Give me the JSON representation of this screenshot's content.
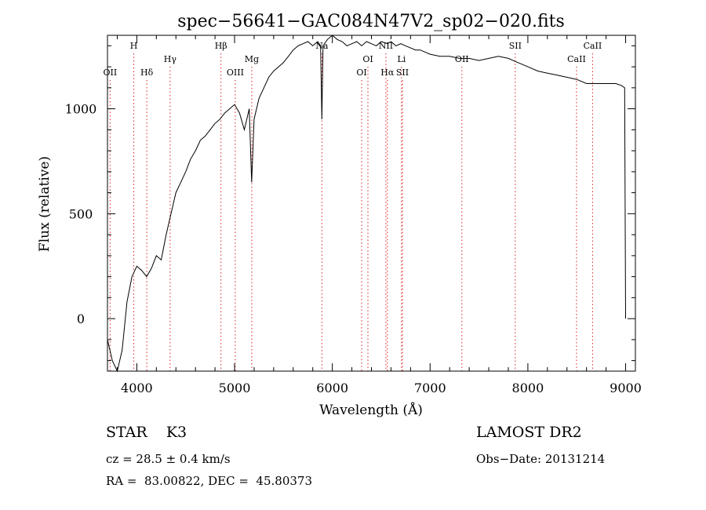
{
  "chart_data": {
    "type": "line",
    "title": "spec−56641−GAC084N47V2_sp02−020.fits",
    "xlabel": "Wavelength (Å)",
    "ylabel": "Flux (relative)",
    "xlim": [
      3700,
      9100
    ],
    "ylim": [
      -250,
      1350
    ],
    "xticks": [
      4000,
      5000,
      6000,
      7000,
      8000,
      9000
    ],
    "yticks": [
      0,
      500,
      1000
    ],
    "grid": false,
    "series": [
      {
        "x": [
          3700,
          3750,
          3800,
          3850,
          3900,
          3950,
          4000,
          4050,
          4100,
          4150,
          4200,
          4250,
          4300,
          4350,
          4400,
          4450,
          4500,
          4550,
          4600,
          4650,
          4700,
          4750,
          4800,
          4850,
          4900,
          4950,
          5000,
          5050,
          5100,
          5150,
          5175,
          5200,
          5250,
          5300,
          5350,
          5400,
          5450,
          5500,
          5550,
          5600,
          5650,
          5700,
          5750,
          5800,
          5850,
          5880,
          5893,
          5905,
          5950,
          6000,
          6050,
          6100,
          6150,
          6200,
          6250,
          6300,
          6350,
          6400,
          6450,
          6500,
          6563,
          6600,
          6650,
          6700,
          6750,
          6800,
          6850,
          6900,
          6950,
          7000,
          7100,
          7200,
          7300,
          7400,
          7500,
          7600,
          7700,
          7800,
          7900,
          8000,
          8100,
          8200,
          8300,
          8400,
          8500,
          8600,
          8700,
          8800,
          8900,
          8960,
          8990,
          9000
        ],
        "y": [
          -100,
          -200,
          -250,
          -150,
          80,
          200,
          250,
          230,
          200,
          240,
          300,
          280,
          400,
          500,
          600,
          650,
          700,
          760,
          800,
          850,
          870,
          900,
          930,
          950,
          980,
          1000,
          1020,
          980,
          900,
          1000,
          650,
          950,
          1050,
          1100,
          1150,
          1180,
          1200,
          1220,
          1250,
          1280,
          1300,
          1310,
          1320,
          1300,
          1320,
          1300,
          950,
          1300,
          1330,
          1350,
          1330,
          1320,
          1300,
          1310,
          1320,
          1300,
          1320,
          1310,
          1300,
          1320,
          1310,
          1320,
          1300,
          1310,
          1300,
          1290,
          1280,
          1280,
          1270,
          1260,
          1250,
          1250,
          1240,
          1240,
          1230,
          1240,
          1250,
          1240,
          1220,
          1200,
          1180,
          1170,
          1160,
          1150,
          1140,
          1120,
          1120,
          1120,
          1120,
          1110,
          1100,
          0
        ]
      }
    ],
    "lines": [
      {
        "name": "OII",
        "wl": 3727,
        "row": 3
      },
      {
        "name": "H",
        "wl": 3969,
        "row": 1
      },
      {
        "name": "Hδ",
        "wl": 4102,
        "row": 3
      },
      {
        "name": "Hγ",
        "wl": 4341,
        "row": 2
      },
      {
        "name": "Hβ",
        "wl": 4861,
        "row": 1
      },
      {
        "name": "OIII",
        "wl": 5007,
        "row": 3
      },
      {
        "name": "Mg",
        "wl": 5176,
        "row": 2
      },
      {
        "name": "Na",
        "wl": 5893,
        "row": 1
      },
      {
        "name": "OI",
        "wl": 6300,
        "row": 3
      },
      {
        "name": "OI",
        "wl": 6364,
        "row": 2
      },
      {
        "name": "NII",
        "wl": 6548,
        "row": 1
      },
      {
        "name": "Hα",
        "wl": 6563,
        "row": 3
      },
      {
        "name": "Li",
        "wl": 6708,
        "row": 2
      },
      {
        "name": "SII",
        "wl": 6717,
        "row": 3
      },
      {
        "name": "OII",
        "wl": 7325,
        "row": 2
      },
      {
        "name": "SII",
        "wl": 7871,
        "row": 1
      },
      {
        "name": "CaII",
        "wl": 8498,
        "row": 2
      },
      {
        "name": "CaII",
        "wl": 8662,
        "row": 1
      }
    ],
    "line_color": "#dd2222"
  },
  "info": {
    "class_label": "STAR",
    "subclass": "K3",
    "survey": "LAMOST DR2",
    "cz_line": "cz = 28.5 ± 0.4 km/s",
    "obs_date": "Obs−Date: 20131214",
    "coords": "RA =  83.00822, DEC =  45.80373"
  }
}
